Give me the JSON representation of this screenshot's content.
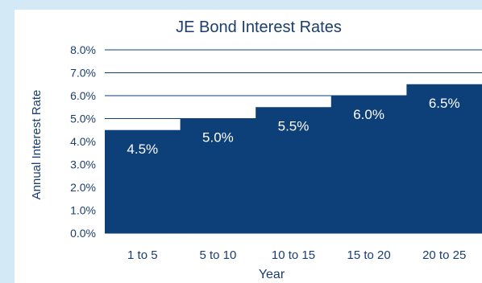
{
  "chart_data": {
    "type": "bar",
    "title": "JE Bond Interest Rates",
    "xlabel": "Year",
    "ylabel": "Annual Interest Rate",
    "categories": [
      "1 to 5",
      "5 to 10",
      "10 to 15",
      "15 to 20",
      "20 to 25"
    ],
    "values": [
      4.5,
      5.0,
      5.5,
      6.0,
      6.5
    ],
    "value_labels": [
      "4.5%",
      "5.0%",
      "5.5%",
      "6.0%",
      "6.5%"
    ],
    "ylim": [
      0,
      8
    ],
    "yticks": [
      "0.0%",
      "1.0%",
      "2.0%",
      "3.0%",
      "4.0%",
      "5.0%",
      "6.0%",
      "7.0%",
      "8.0%"
    ],
    "grid": true,
    "bar_color": "#0d3f79",
    "grid_color": "#0d3f79",
    "background_color": "#d3e9f6"
  }
}
